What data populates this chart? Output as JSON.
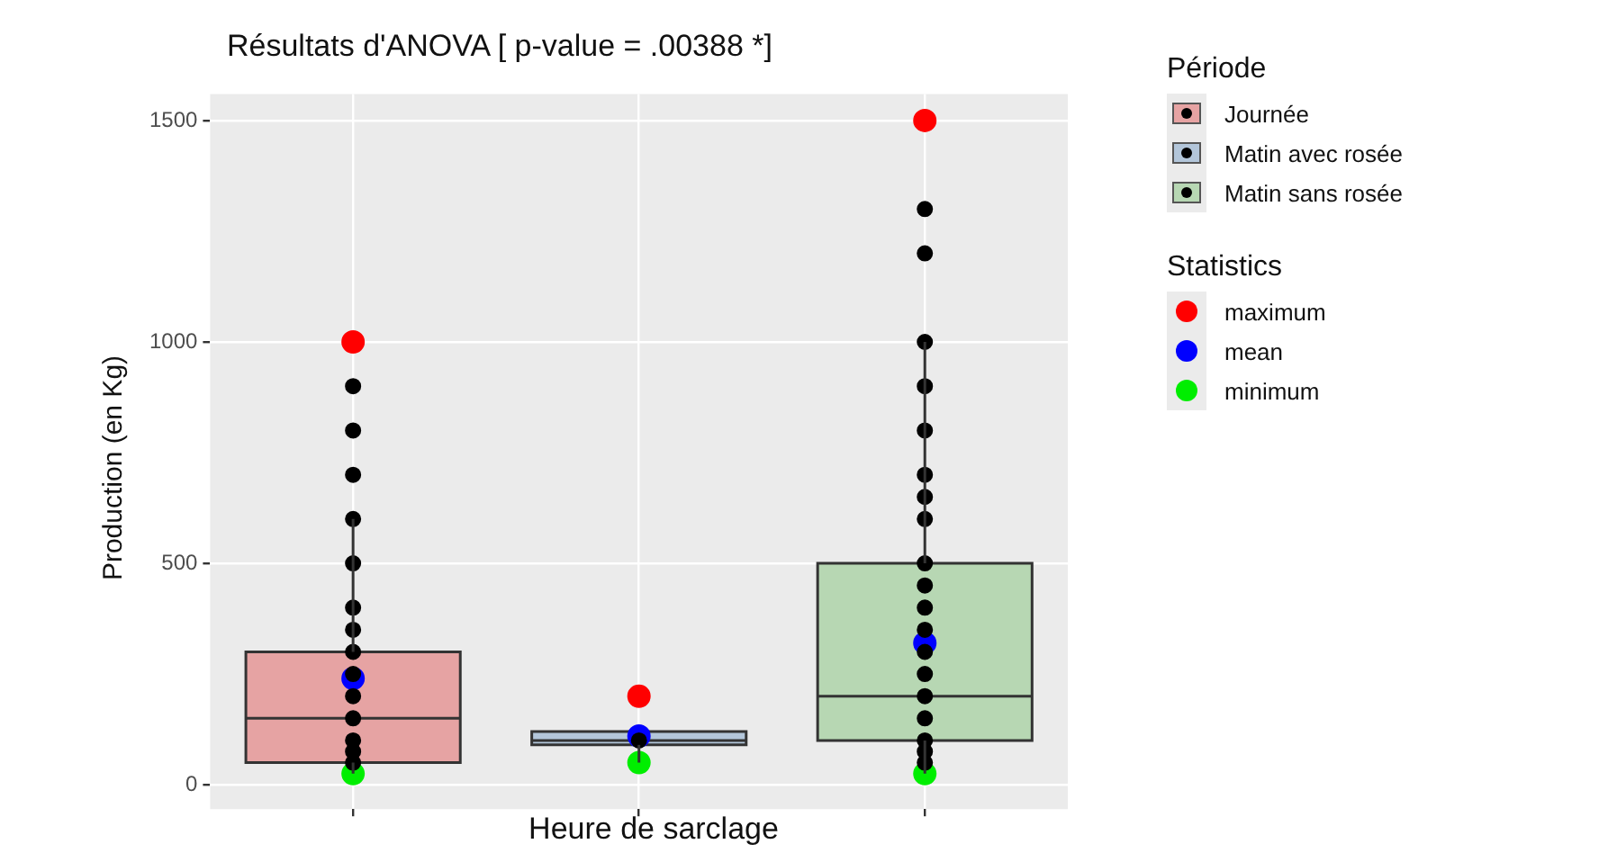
{
  "chart_data": {
    "type": "box",
    "title": "Résultats d'ANOVA [ p-value = .00388 *]",
    "xlabel": "Heure de sarclage",
    "ylabel": "Production (en Kg)",
    "legend_title": "Période",
    "annotations": [
      "Statistics"
    ],
    "categories": [
      null,
      null,
      null
    ],
    "ylim": [
      -55,
      1560
    ],
    "yticks": [
      0,
      500,
      1000,
      1500
    ],
    "grid": true,
    "legend": "right",
    "marker": "circle",
    "series": [
      {
        "name": "Journée",
        "color": "#e6a3a3",
        "boxes": [
          {
            "low": 25,
            "q1": 50,
            "median": 150,
            "q3": 300,
            "high": 600
          },
          null,
          null
        ]
      },
      {
        "name": "Matin avec rosée",
        "color": "#b3c6da",
        "boxes": [
          null,
          {
            "low": 50,
            "q1": 90,
            "median": 100,
            "q3": 120,
            "high": 120
          },
          null
        ]
      },
      {
        "name": "Matin sans rosée",
        "color": "#b7d7b3",
        "boxes": [
          null,
          null,
          {
            "low": 25,
            "q1": 100,
            "median": 200,
            "q3": 500,
            "high": 1000
          }
        ]
      },
      {
        "type": "scatter",
        "color": "#000000",
        "values": [
          50,
          100,
          50
        ]
      },
      {
        "type": "scatter",
        "color": "#000000",
        "values": [
          75,
          null,
          75
        ]
      },
      {
        "type": "scatter",
        "color": "#000000",
        "values": [
          100,
          null,
          100
        ]
      },
      {
        "type": "scatter",
        "color": "#000000",
        "values": [
          150,
          null,
          150
        ]
      },
      {
        "type": "scatter",
        "color": "#000000",
        "values": [
          200,
          null,
          200
        ]
      },
      {
        "type": "scatter",
        "color": "#000000",
        "values": [
          250,
          null,
          250
        ]
      },
      {
        "type": "scatter",
        "color": "#000000",
        "values": [
          300,
          null,
          300
        ]
      },
      {
        "type": "scatter",
        "color": "#000000",
        "values": [
          350,
          null,
          350
        ]
      },
      {
        "type": "scatter",
        "color": "#000000",
        "values": [
          400,
          null,
          400
        ]
      },
      {
        "type": "scatter",
        "color": "#000000",
        "values": [
          500,
          null,
          450
        ]
      },
      {
        "type": "scatter",
        "color": "#000000",
        "values": [
          600,
          null,
          500
        ]
      },
      {
        "type": "scatter",
        "color": "#000000",
        "values": [
          700,
          null,
          600
        ]
      },
      {
        "type": "scatter",
        "color": "#000000",
        "values": [
          800,
          null,
          650
        ]
      },
      {
        "type": "scatter",
        "color": "#000000",
        "values": [
          900,
          null,
          700
        ]
      },
      {
        "type": "scatter",
        "color": "#000000",
        "values": [
          null,
          null,
          800
        ]
      },
      {
        "type": "scatter",
        "color": "#000000",
        "values": [
          null,
          null,
          900
        ]
      },
      {
        "type": "scatter",
        "color": "#000000",
        "values": [
          null,
          null,
          1000
        ]
      },
      {
        "type": "scatter",
        "color": "#000000",
        "values": [
          null,
          null,
          1200
        ]
      },
      {
        "type": "scatter",
        "color": "#000000",
        "values": [
          null,
          null,
          1300
        ]
      },
      {
        "type": "scatter",
        "name": "maximum",
        "color": "#ff0000",
        "values": [
          1000,
          200,
          1500
        ]
      },
      {
        "type": "scatter",
        "name": "mean",
        "color": "#0000ff",
        "values": [
          240,
          110,
          320
        ]
      },
      {
        "type": "scatter",
        "name": "minimum",
        "color": "#00ee00",
        "values": [
          25,
          50,
          25
        ]
      }
    ]
  }
}
